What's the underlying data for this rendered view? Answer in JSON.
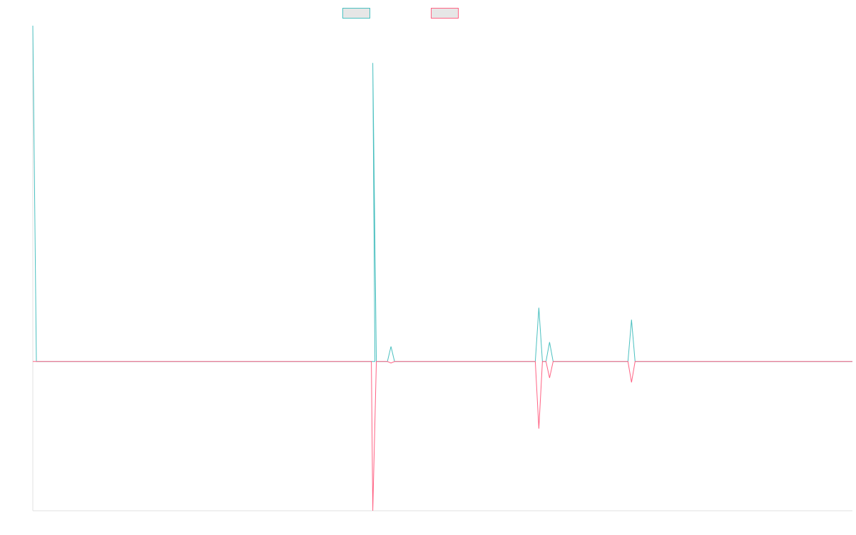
{
  "legend": {
    "series0_label": "",
    "series1_label": ""
  },
  "colors": {
    "series0": "#4bc0c0",
    "series1": "#ff6384",
    "axis": "#e0e0e0",
    "swatch_fill": "#e6e6e6"
  },
  "chart_data": {
    "type": "line",
    "title": "",
    "xlabel": "",
    "ylabel": "",
    "xlim": [
      0,
      230
    ],
    "ylim": [
      -100,
      225
    ],
    "grid": false,
    "legend_position": "top-center",
    "series": [
      {
        "color": "#4bc0c0",
        "points": [
          [
            0,
            225
          ],
          [
            1,
            0
          ],
          [
            95,
            0
          ],
          [
            95.5,
            0
          ],
          [
            96,
            0
          ],
          [
            95.4,
            200
          ],
          [
            96.4,
            0
          ],
          [
            99.5,
            0
          ],
          [
            100.5,
            10
          ],
          [
            101.5,
            0
          ],
          [
            141,
            0
          ],
          [
            142,
            36
          ],
          [
            143,
            0
          ],
          [
            144,
            0
          ],
          [
            145,
            13
          ],
          [
            146,
            0
          ],
          [
            167,
            0
          ],
          [
            168,
            28
          ],
          [
            169,
            0
          ],
          [
            230,
            0
          ]
        ]
      },
      {
        "color": "#ff6384",
        "points": [
          [
            0,
            0
          ],
          [
            95,
            0
          ],
          [
            95.4,
            -100
          ],
          [
            96.4,
            0
          ],
          [
            99.5,
            0
          ],
          [
            100.5,
            -1
          ],
          [
            101.5,
            0
          ],
          [
            141,
            0
          ],
          [
            142,
            -45
          ],
          [
            143,
            0
          ],
          [
            144,
            0
          ],
          [
            145,
            -11
          ],
          [
            146,
            0
          ],
          [
            167,
            0
          ],
          [
            168,
            -14
          ],
          [
            169,
            0
          ],
          [
            230,
            0
          ]
        ]
      }
    ]
  }
}
